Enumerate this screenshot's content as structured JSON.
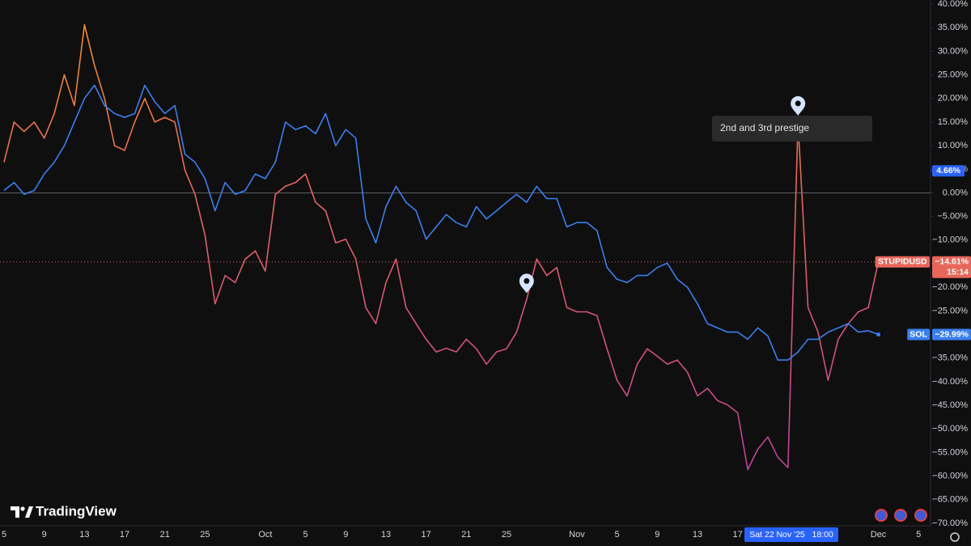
{
  "chart_data": {
    "type": "line",
    "logo": "TradingView",
    "categories": [
      "5",
      null,
      null,
      null,
      "9",
      null,
      null,
      null,
      "13",
      null,
      null,
      null,
      "17",
      null,
      null,
      null,
      "21",
      null,
      null,
      null,
      "25",
      null,
      null,
      null,
      null,
      null,
      "Oct",
      null,
      null,
      null,
      "5",
      null,
      null,
      null,
      "9",
      null,
      null,
      null,
      "13",
      null,
      null,
      null,
      "17",
      null,
      null,
      null,
      "21",
      null,
      null,
      null,
      "25",
      null,
      null,
      null,
      null,
      null,
      null,
      "Nov",
      null,
      null,
      null,
      "5",
      null,
      null,
      null,
      "9",
      null,
      null,
      null,
      "13",
      null,
      null,
      null,
      "17",
      null,
      null,
      null,
      null,
      null,
      null,
      null,
      null,
      null,
      null,
      null,
      null,
      null,
      "Dec",
      null,
      null,
      null,
      "5"
    ],
    "series": [
      {
        "name": "STUPIDUSD",
        "color": "#e8665a",
        "gradient": [
          "#f7931a",
          "#e8665a",
          "#d2507e",
          "#b53aa8"
        ],
        "countdown": "15:14",
        "values": [
          6.5,
          15,
          13,
          15,
          11.6,
          16.8,
          25,
          18.5,
          35.6,
          27,
          20,
          10,
          9,
          15,
          20,
          15,
          16,
          15,
          4.8,
          -0.3,
          -9,
          -23.5,
          -17.5,
          -19,
          -14,
          -12.3,
          -16.6,
          -0.3,
          1.4,
          2.2,
          4,
          -2,
          -3.8,
          -10.6,
          -9.8,
          -14,
          -24.3,
          -27.7,
          -19,
          -14,
          -24.3,
          -27.7,
          -31,
          -33.7,
          -32.9,
          -33.7,
          -31,
          -33,
          -36.3,
          -33.7,
          -33,
          -29.5,
          -22.6,
          -14,
          -17.5,
          -15.8,
          -24.3,
          -25.2,
          -25.2,
          -26,
          -33,
          -39.7,
          -43,
          -36.3,
          -33,
          -34.6,
          -36.3,
          -35.4,
          -38,
          -43,
          -41.4,
          -44,
          -44.9,
          -46.6,
          -58.6,
          -54.3,
          -51.7,
          -56,
          -58.2,
          15,
          -24.3,
          -29.5,
          -39.7,
          -31,
          -27.7,
          -25.2,
          -24.3,
          -14.61,
          null,
          null,
          null,
          null
        ],
        "value_labels": [
          null,
          null,
          null,
          null,
          null,
          null,
          null,
          null,
          null,
          null,
          null,
          null,
          null,
          null,
          null,
          null,
          null,
          null,
          null,
          null,
          null,
          null,
          null,
          null,
          null,
          null,
          null,
          null,
          null,
          null,
          null,
          null,
          null,
          null,
          null,
          null,
          null,
          null,
          null,
          null,
          null,
          null,
          null,
          null,
          null,
          null,
          null,
          null,
          null,
          null,
          null,
          null,
          null,
          null,
          null,
          null,
          null,
          null,
          null,
          null,
          null,
          null,
          null,
          null,
          null,
          null,
          null,
          null,
          null,
          null,
          null,
          null,
          null,
          null,
          null,
          null,
          null,
          null,
          null,
          null,
          null,
          null,
          null,
          null,
          null,
          null,
          null,
          "−14.61%",
          null,
          null,
          null,
          null
        ]
      },
      {
        "name": "SOL",
        "color": "#3a7ff0",
        "values": [
          0.5,
          2.2,
          -0.3,
          0.5,
          4,
          6.5,
          10,
          15,
          20,
          22.8,
          18.5,
          16.8,
          16,
          16.8,
          22.8,
          19.3,
          16.8,
          18.5,
          8.2,
          6.5,
          3,
          -3.8,
          2.2,
          -0.3,
          0.5,
          4,
          3,
          6.5,
          15,
          13.4,
          14.2,
          12.5,
          16.8,
          10,
          13.4,
          11.6,
          -5.5,
          -10.6,
          -2.9,
          1.4,
          -2,
          -3.8,
          -9.8,
          -7.2,
          -4.6,
          -6.3,
          -7.2,
          -2.9,
          -5.5,
          -3.8,
          -2,
          -0.3,
          -2,
          1.4,
          -1.2,
          -1.2,
          -7.2,
          -6.3,
          -6.3,
          -8,
          -15.8,
          -18.3,
          -19,
          -17.5,
          -17.5,
          -15.8,
          -14.9,
          -18.3,
          -20,
          -23.5,
          -27.7,
          -28.6,
          -29.5,
          -29.5,
          -31,
          -28.6,
          -30.3,
          -35.4,
          -35.4,
          -33.7,
          -31,
          -31,
          -29.5,
          -28.6,
          -27.7,
          -29.5,
          -29.2,
          -29.99,
          null,
          null,
          null,
          null
        ],
        "value_labels": [
          null,
          null,
          null,
          null,
          null,
          null,
          null,
          null,
          null,
          null,
          null,
          null,
          null,
          null,
          null,
          null,
          null,
          null,
          null,
          null,
          null,
          null,
          null,
          null,
          null,
          null,
          null,
          null,
          null,
          null,
          null,
          null,
          null,
          null,
          null,
          null,
          null,
          null,
          null,
          null,
          null,
          null,
          null,
          null,
          null,
          null,
          null,
          null,
          null,
          null,
          null,
          null,
          null,
          null,
          null,
          null,
          null,
          null,
          null,
          null,
          null,
          null,
          null,
          null,
          null,
          null,
          null,
          null,
          null,
          null,
          null,
          null,
          null,
          null,
          null,
          null,
          null,
          null,
          null,
          null,
          null,
          null,
          null,
          null,
          null,
          null,
          null,
          "−29.99%",
          null,
          null,
          null,
          null
        ]
      }
    ],
    "annotations": [
      {
        "index": 52
      },
      {
        "index": 79,
        "text": "2nd and 3rd prestige"
      }
    ],
    "crosshair": {
      "x_label": "Sat 22 Nov '25   18:00",
      "y": 4.66,
      "y_label": "4.66%"
    },
    "baseline": 0,
    "ylim": [
      -70,
      40
    ],
    "yticks": [
      {
        "value": 40,
        "label": "40.00%"
      },
      {
        "value": 35,
        "label": "35.00%"
      },
      {
        "value": 30,
        "label": "30.00%"
      },
      {
        "value": 25,
        "label": "25.00%"
      },
      {
        "value": 20,
        "label": "20.00%"
      },
      {
        "value": 15,
        "label": "15.00%"
      },
      {
        "value": 10,
        "label": "10.00%"
      },
      {
        "value": 5,
        "label": "5.00%"
      },
      {
        "value": 0,
        "label": "0.00%"
      },
      {
        "value": -5,
        "label": "−5.00%"
      },
      {
        "value": -10,
        "label": "−10.00%"
      },
      {
        "value": -15,
        "label": "−15.00%"
      },
      {
        "value": -20,
        "label": "−20.00%"
      },
      {
        "value": -25,
        "label": "−25.00%"
      },
      {
        "value": -30,
        "label": "−30.00%"
      },
      {
        "value": -35,
        "label": "−35.00%"
      },
      {
        "value": -40,
        "label": "−40.00%"
      },
      {
        "value": -45,
        "label": "−45.00%"
      },
      {
        "value": -50,
        "label": "−50.00%"
      },
      {
        "value": -55,
        "label": "−55.00%"
      },
      {
        "value": -60,
        "label": "−60.00%"
      },
      {
        "value": -65,
        "label": "−65.00%"
      },
      {
        "value": -70,
        "label": "−70.00%"
      }
    ],
    "grid": false
  }
}
